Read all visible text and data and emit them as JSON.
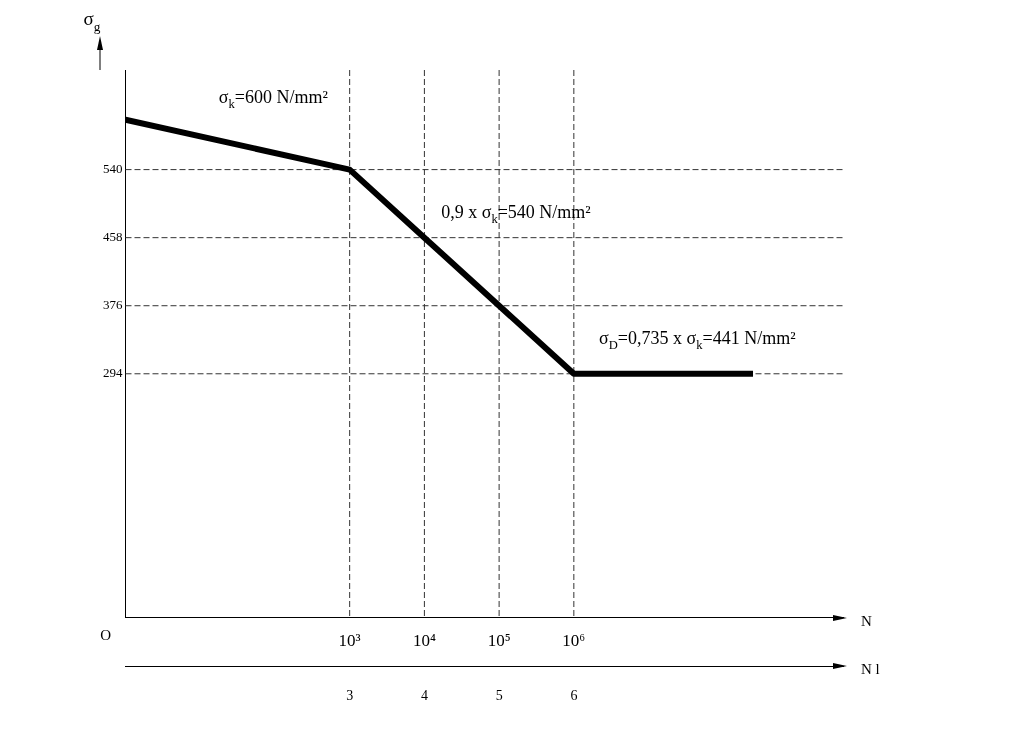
{
  "chart_data": {
    "type": "line",
    "ylabel": "σ$_{g}$",
    "xlabel": "N",
    "x2label": "N l",
    "x": [
      1,
      1000,
      10000,
      100000,
      1000000,
      250000000
    ],
    "series": [
      {
        "color": "#000000",
        "values": [
          600,
          540,
          458,
          376,
          294,
          294
        ]
      }
    ],
    "log": "x",
    "xlim": [
      1,
      4000000000
    ],
    "xticks": [
      {
        "value": 1000,
        "label": "10³"
      },
      {
        "value": 10000,
        "label": "10⁴"
      },
      {
        "value": 100000,
        "label": "10⁵"
      },
      {
        "value": 1000000,
        "label": "10⁶"
      }
    ],
    "x2lim": [
      0,
      9.6
    ],
    "x2ticks": [
      3,
      4,
      5,
      6
    ],
    "ylim": [
      0,
      660
    ],
    "yticks": [
      294,
      376,
      458,
      540
    ],
    "grid": true,
    "legend": false,
    "marker": "none",
    "line_style": "solid",
    "annotations": [
      "σ$_{k}$=600 N/mm²",
      "0,9 x σ$_{k}$=540 N/mm²",
      "σ$_{D}$=0,735 x σ$_{k}$=441 N/mm²",
      "O"
    ]
  }
}
